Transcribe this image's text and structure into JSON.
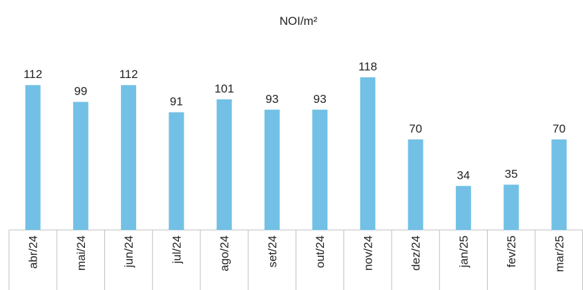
{
  "chart_data": {
    "type": "bar",
    "title": "NOI/m²",
    "categories": [
      "abr/24",
      "mai/24",
      "jun/24",
      "jul/24",
      "ago/24",
      "set/24",
      "out/24",
      "nov/24",
      "dez/24",
      "jan/25",
      "fev/25",
      "mar/25"
    ],
    "values": [
      112,
      99,
      112,
      91,
      101,
      93,
      93,
      118,
      70,
      34,
      35,
      70
    ],
    "color": "#72c0e6"
  }
}
